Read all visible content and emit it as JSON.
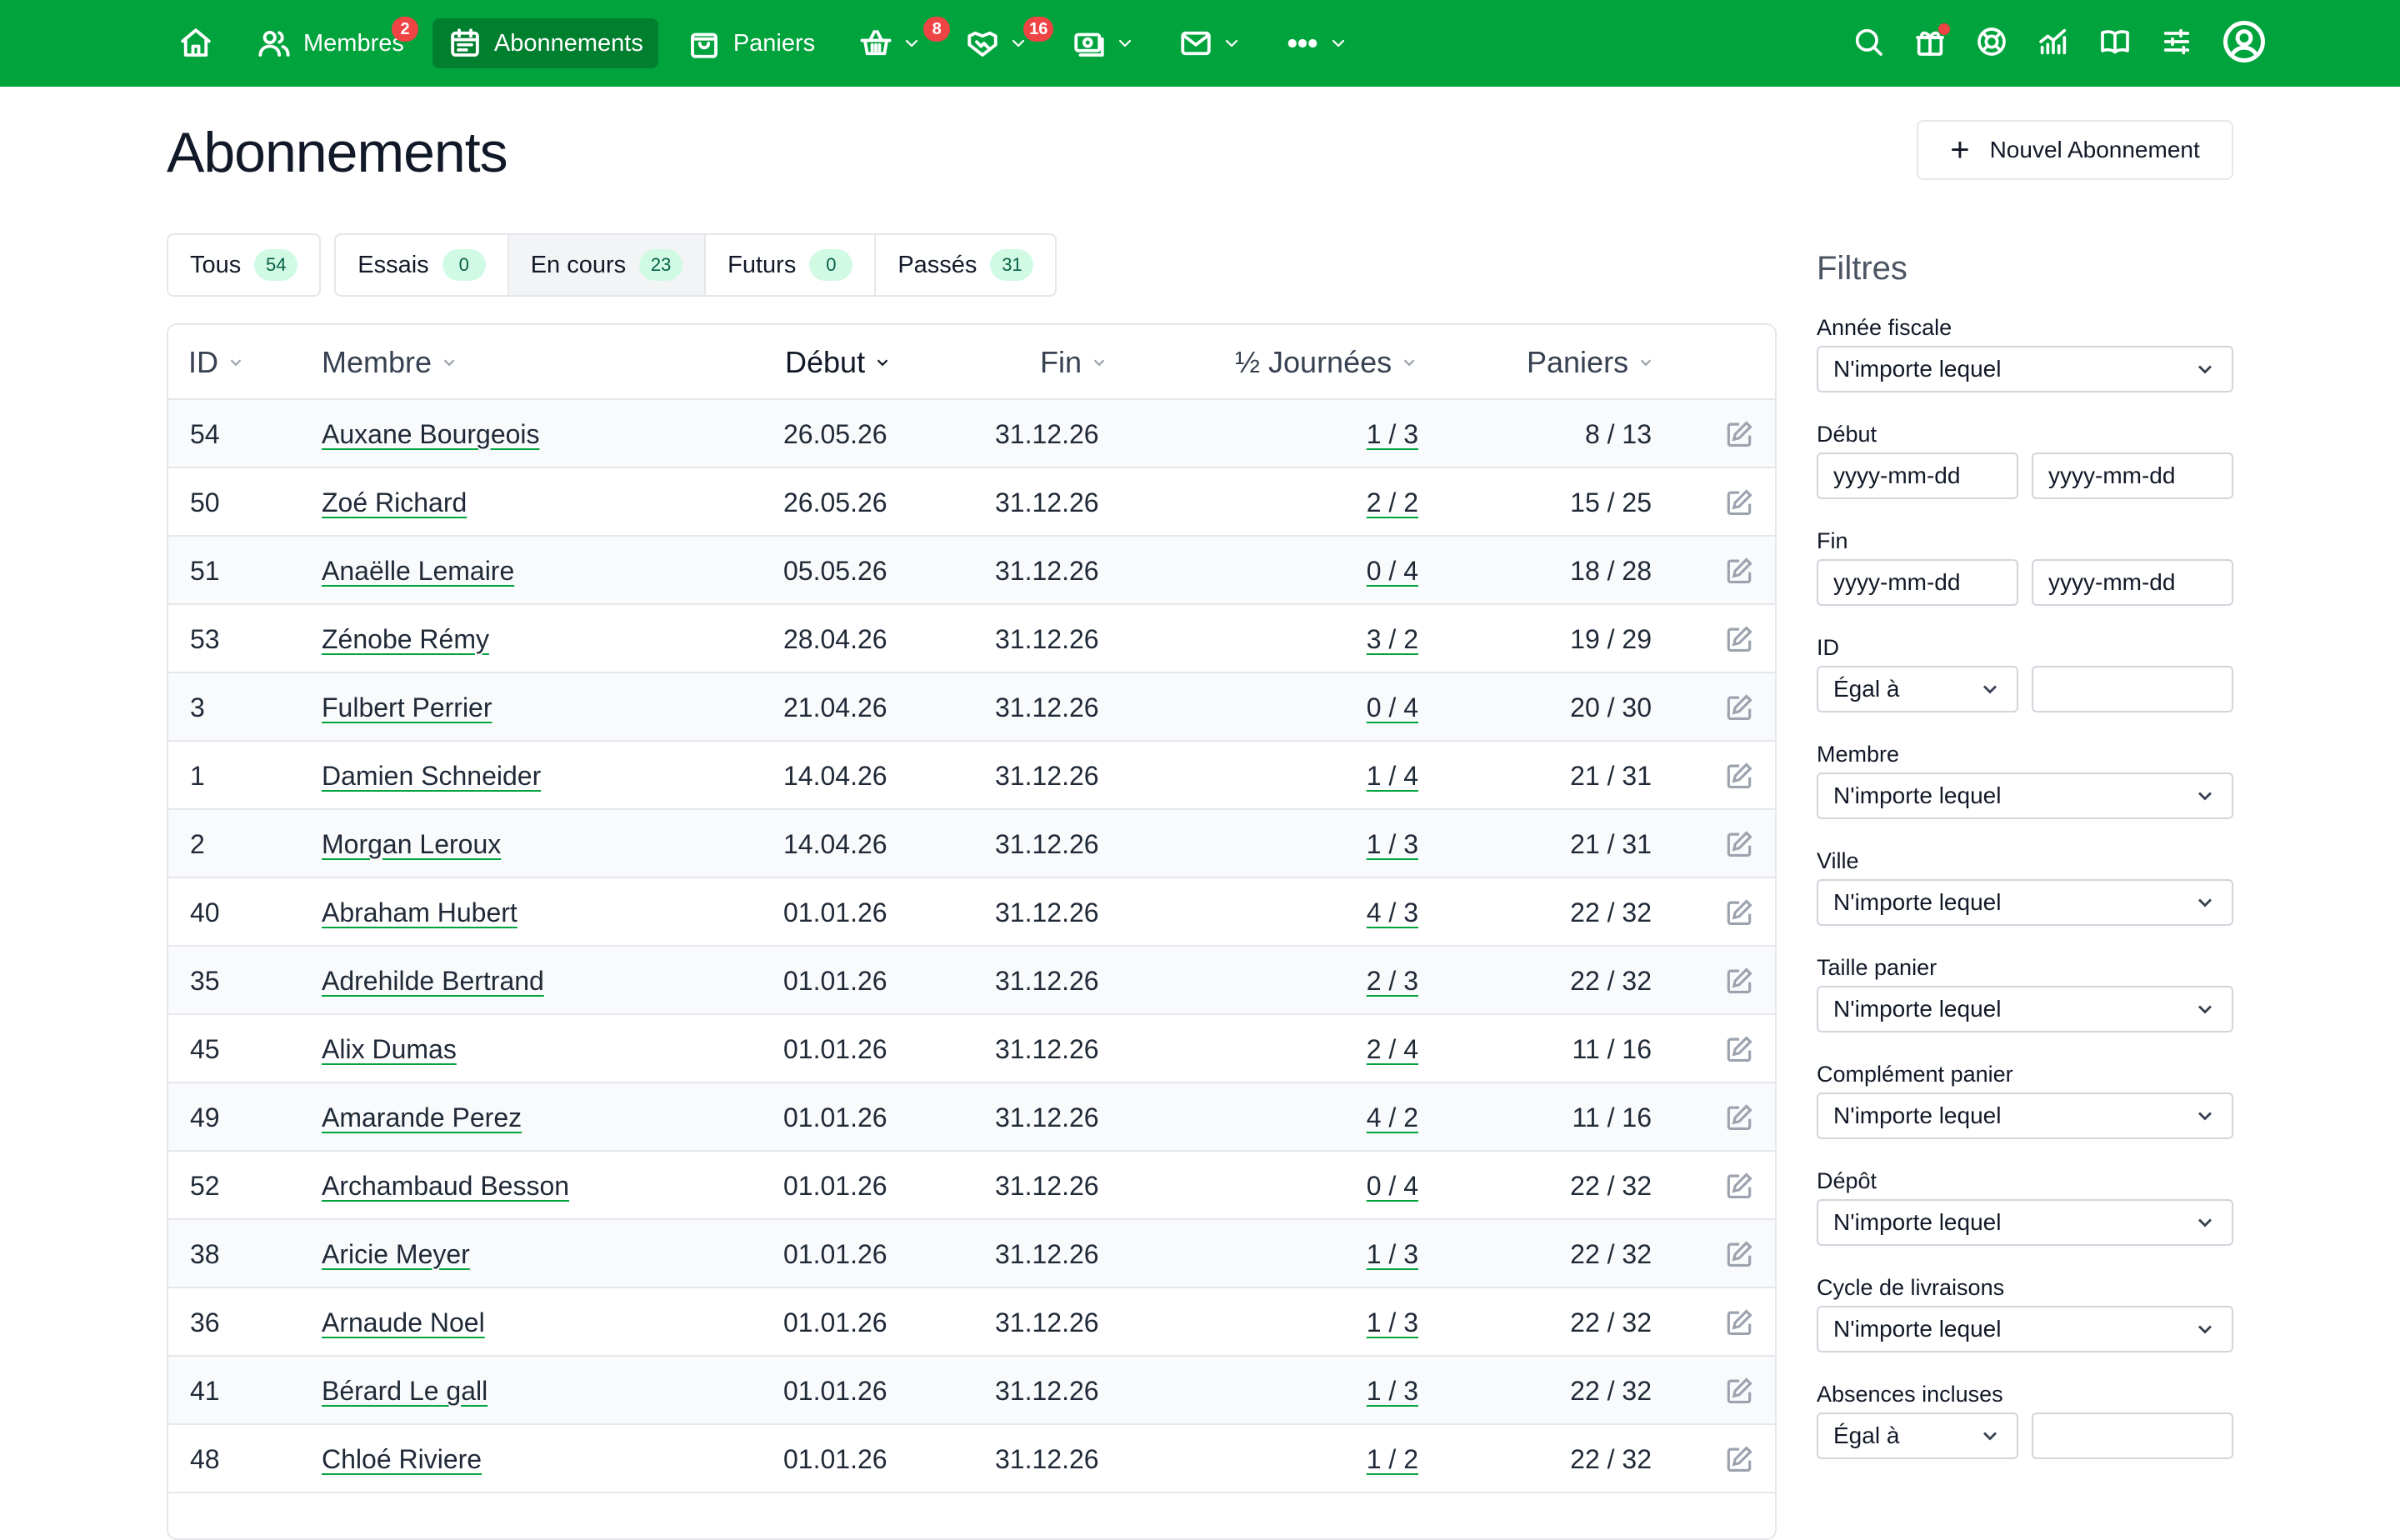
{
  "nav": {
    "members_label": "Membres",
    "members_badge": "2",
    "subscriptions_label": "Abonnements",
    "baskets_label": "Paniers",
    "shop_badge": "8",
    "activities_badge": "16"
  },
  "page": {
    "title": "Abonnements",
    "new_button": "Nouvel Abonnement"
  },
  "tabs": [
    {
      "label": "Tous",
      "count": "54"
    },
    {
      "label": "Essais",
      "count": "0"
    },
    {
      "label": "En cours",
      "count": "23"
    },
    {
      "label": "Futurs",
      "count": "0"
    },
    {
      "label": "Passés",
      "count": "31"
    }
  ],
  "table": {
    "headers": {
      "id": "ID",
      "member": "Membre",
      "start": "Début",
      "end": "Fin",
      "half_days": "½ Journées",
      "baskets": "Paniers"
    },
    "rows": [
      {
        "id": "54",
        "member": "Auxane Bourgeois",
        "start": "26.05.26",
        "end": "31.12.26",
        "half_days": "1 / 3",
        "baskets": "8 / 13"
      },
      {
        "id": "50",
        "member": "Zoé Richard",
        "start": "26.05.26",
        "end": "31.12.26",
        "half_days": "2 / 2",
        "baskets": "15 / 25"
      },
      {
        "id": "51",
        "member": "Anaëlle Lemaire",
        "start": "05.05.26",
        "end": "31.12.26",
        "half_days": "0 / 4",
        "baskets": "18 / 28"
      },
      {
        "id": "53",
        "member": "Zénobe Rémy",
        "start": "28.04.26",
        "end": "31.12.26",
        "half_days": "3 / 2",
        "baskets": "19 / 29"
      },
      {
        "id": "3",
        "member": "Fulbert Perrier",
        "start": "21.04.26",
        "end": "31.12.26",
        "half_days": "0 / 4",
        "baskets": "20 / 30"
      },
      {
        "id": "1",
        "member": "Damien Schneider",
        "start": "14.04.26",
        "end": "31.12.26",
        "half_days": "1 / 4",
        "baskets": "21 / 31"
      },
      {
        "id": "2",
        "member": "Morgan Leroux",
        "start": "14.04.26",
        "end": "31.12.26",
        "half_days": "1 / 3",
        "baskets": "21 / 31"
      },
      {
        "id": "40",
        "member": "Abraham Hubert",
        "start": "01.01.26",
        "end": "31.12.26",
        "half_days": "4 / 3",
        "baskets": "22 / 32"
      },
      {
        "id": "35",
        "member": "Adrehilde Bertrand",
        "start": "01.01.26",
        "end": "31.12.26",
        "half_days": "2 / 3",
        "baskets": "22 / 32"
      },
      {
        "id": "45",
        "member": "Alix Dumas",
        "start": "01.01.26",
        "end": "31.12.26",
        "half_days": "2 / 4",
        "baskets": "11 / 16"
      },
      {
        "id": "49",
        "member": "Amarande Perez",
        "start": "01.01.26",
        "end": "31.12.26",
        "half_days": "4 / 2",
        "baskets": "11 / 16"
      },
      {
        "id": "52",
        "member": "Archambaud Besson",
        "start": "01.01.26",
        "end": "31.12.26",
        "half_days": "0 / 4",
        "baskets": "22 / 32"
      },
      {
        "id": "38",
        "member": "Aricie Meyer",
        "start": "01.01.26",
        "end": "31.12.26",
        "half_days": "1 / 3",
        "baskets": "22 / 32"
      },
      {
        "id": "36",
        "member": "Arnaude Noel",
        "start": "01.01.26",
        "end": "31.12.26",
        "half_days": "1 / 3",
        "baskets": "22 / 32"
      },
      {
        "id": "41",
        "member": "Bérard Le gall",
        "start": "01.01.26",
        "end": "31.12.26",
        "half_days": "1 / 3",
        "baskets": "22 / 32"
      },
      {
        "id": "48",
        "member": "Chloé Riviere",
        "start": "01.01.26",
        "end": "31.12.26",
        "half_days": "1 / 2",
        "baskets": "22 / 32"
      }
    ]
  },
  "filters": {
    "title": "Filtres",
    "fiscal_year": {
      "label": "Année fiscale",
      "value": "N'importe lequel"
    },
    "start": {
      "label": "Début",
      "from_placeholder": "yyyy-mm-dd",
      "to_placeholder": "yyyy-mm-dd"
    },
    "end": {
      "label": "Fin",
      "from_placeholder": "yyyy-mm-dd",
      "to_placeholder": "yyyy-mm-dd"
    },
    "id": {
      "label": "ID",
      "operator": "Égal à",
      "value": ""
    },
    "member": {
      "label": "Membre",
      "value": "N'importe lequel"
    },
    "city": {
      "label": "Ville",
      "value": "N'importe lequel"
    },
    "basket_size": {
      "label": "Taille panier",
      "value": "N'importe lequel"
    },
    "basket_complement": {
      "label": "Complément panier",
      "value": "N'importe lequel"
    },
    "depot": {
      "label": "Dépôt",
      "value": "N'importe lequel"
    },
    "delivery_cycle": {
      "label": "Cycle de livraisons",
      "value": "N'importe lequel"
    },
    "absences": {
      "label": "Absences incluses",
      "operator": "Égal à",
      "value": ""
    }
  }
}
